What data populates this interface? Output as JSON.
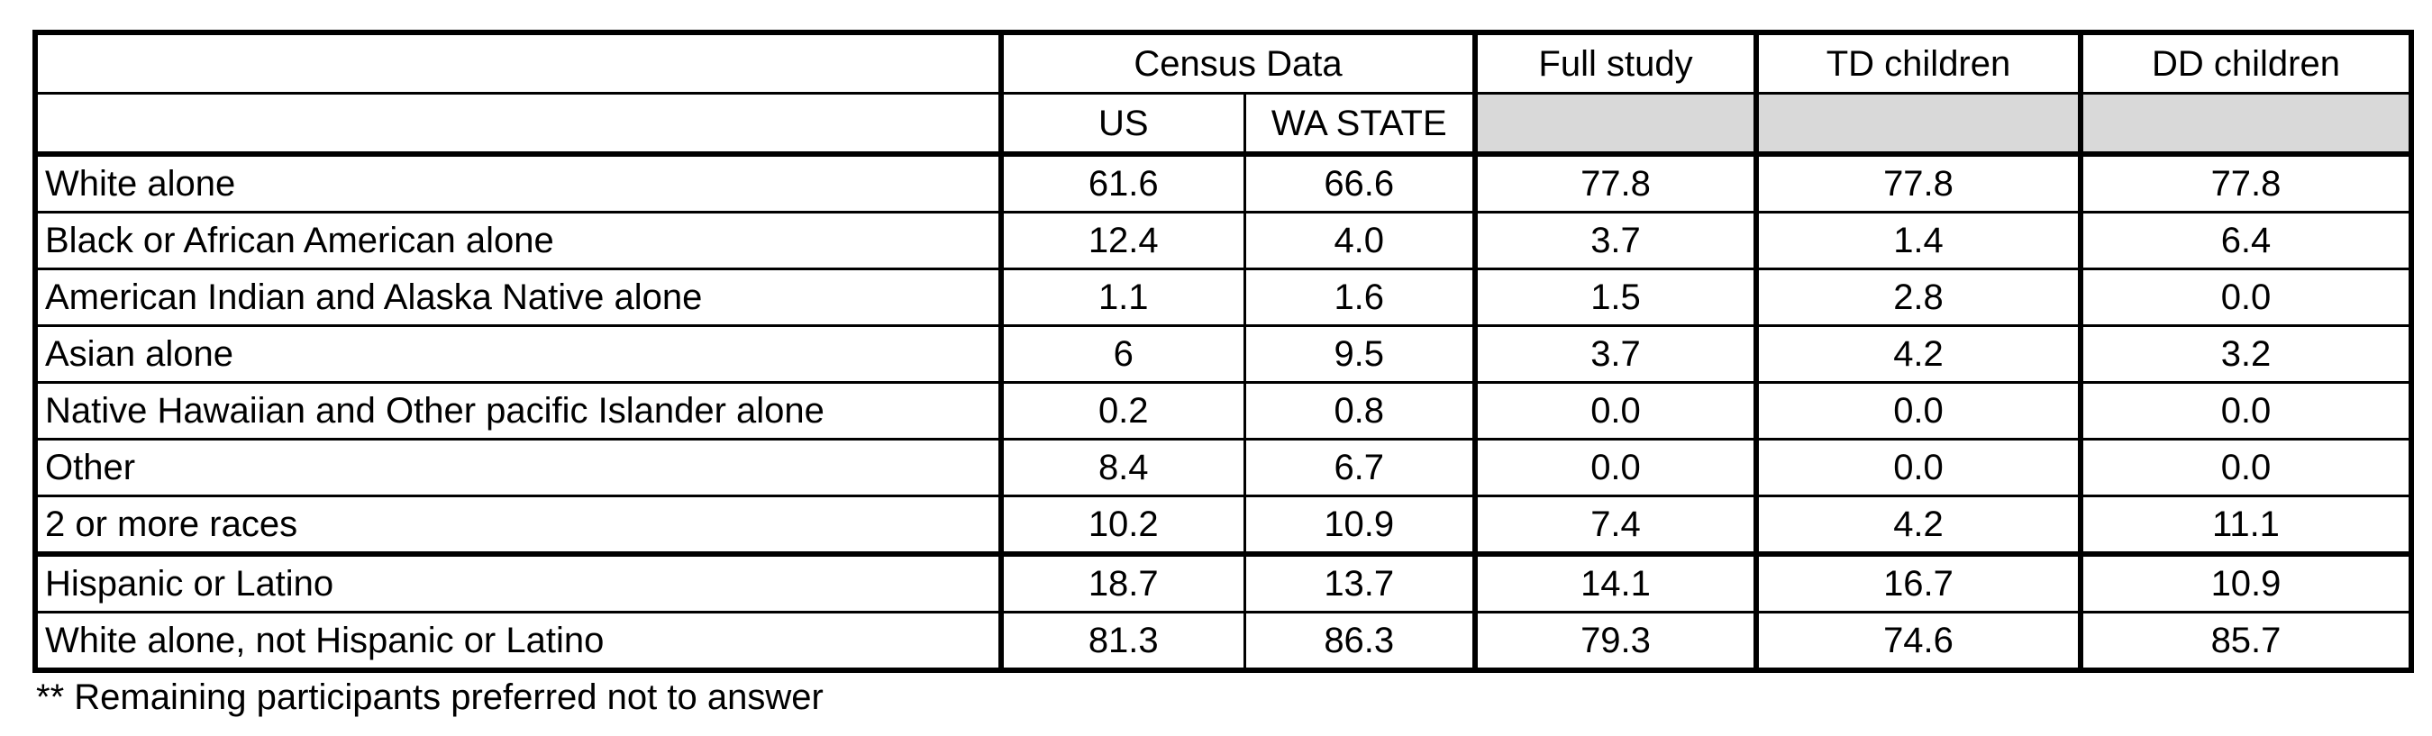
{
  "table": {
    "headers": {
      "group1": "Census Data",
      "col3": "Full study",
      "col4": "TD children",
      "col5": "DD children",
      "sub1": "US",
      "sub2": "WA STATE"
    },
    "rows": [
      {
        "label": "White alone",
        "values": [
          "61.6",
          "66.6",
          "77.8",
          "77.8",
          "77.8"
        ]
      },
      {
        "label": "Black or African American alone",
        "values": [
          "12.4",
          "4.0",
          "3.7",
          "1.4",
          "6.4"
        ]
      },
      {
        "label": "American Indian and Alaska Native alone",
        "values": [
          "1.1",
          "1.6",
          "1.5",
          "2.8",
          "0.0"
        ]
      },
      {
        "label": "Asian alone",
        "values": [
          "6",
          "9.5",
          "3.7",
          "4.2",
          "3.2"
        ]
      },
      {
        "label": "Native Hawaiian and Other pacific Islander alone",
        "values": [
          "0.2",
          "0.8",
          "0.0",
          "0.0",
          "0.0"
        ]
      },
      {
        "label": "Other",
        "values": [
          "8.4",
          "6.7",
          "0.0",
          "0.0",
          "0.0"
        ]
      },
      {
        "label": "2 or more races",
        "values": [
          "10.2",
          "10.9",
          "7.4",
          "4.2",
          "11.1"
        ]
      },
      {
        "label": "Hispanic or Latino",
        "values": [
          "18.7",
          "13.7",
          "14.1",
          "16.7",
          "10.9"
        ]
      },
      {
        "label": "White alone, not Hispanic or Latino",
        "values": [
          "81.3",
          "86.3",
          "79.3",
          "74.6",
          "85.7"
        ]
      }
    ]
  },
  "footnote": "** Remaining participants preferred not to answer"
}
